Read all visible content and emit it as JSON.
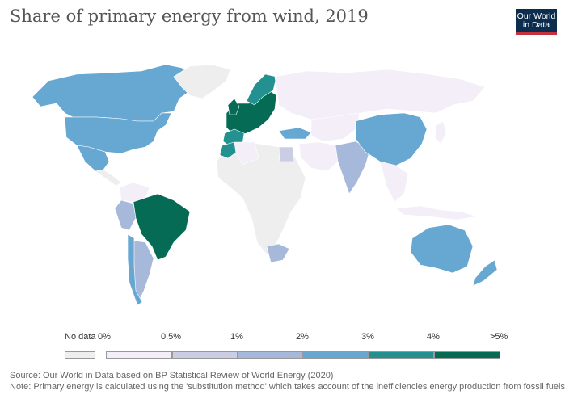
{
  "title": "Share of primary energy from wind, 2019",
  "logo": {
    "line1": "Our World",
    "line2": "in Data"
  },
  "legend": {
    "no_data_label": "No data",
    "ticks": [
      "0%",
      "0.5%",
      "1%",
      "2%",
      "3%",
      "4%",
      ">5%"
    ],
    "no_data_color": "#eeeeee",
    "bins": [
      {
        "from": "0%",
        "to": "0.5%",
        "color": "#f3eef7"
      },
      {
        "from": "0.5%",
        "to": "1%",
        "color": "#cbcde4"
      },
      {
        "from": "1%",
        "to": "2%",
        "color": "#a6b9da"
      },
      {
        "from": "2%",
        "to": "3%",
        "color": "#66a8d2"
      },
      {
        "from": "3%",
        "to": "4%",
        "color": "#22918f"
      },
      {
        "from": "4%",
        "to": ">5%",
        "color": "#056b55"
      }
    ]
  },
  "regions": [
    {
      "name": "North America",
      "bin": "2%-3%"
    },
    {
      "name": "Greenland",
      "bin": "no data"
    },
    {
      "name": "Mexico",
      "bin": "2%-3%"
    },
    {
      "name": "Brazil",
      "bin": "4%->5%"
    },
    {
      "name": "Argentina",
      "bin": "1%-2%"
    },
    {
      "name": "Western Europe",
      "bin": "4%->5%"
    },
    {
      "name": "Russia",
      "bin": "0%-0.5%"
    },
    {
      "name": "China",
      "bin": "2%-3%"
    },
    {
      "name": "India",
      "bin": "1%-2%"
    },
    {
      "name": "Australia",
      "bin": "2%-3%"
    },
    {
      "name": "New Zealand",
      "bin": "2%-3%"
    },
    {
      "name": "Africa",
      "bin": "no data"
    },
    {
      "name": "Egypt",
      "bin": "0.5%-1%"
    },
    {
      "name": "South Africa",
      "bin": "1%-2%"
    }
  ],
  "footer": {
    "source": "Source: Our World in Data based on BP Statistical Review of World Energy (2020)",
    "note": "Note: Primary energy is calculated using the 'substitution method' which takes account of the inefficiencies energy production from fossil fuels."
  }
}
